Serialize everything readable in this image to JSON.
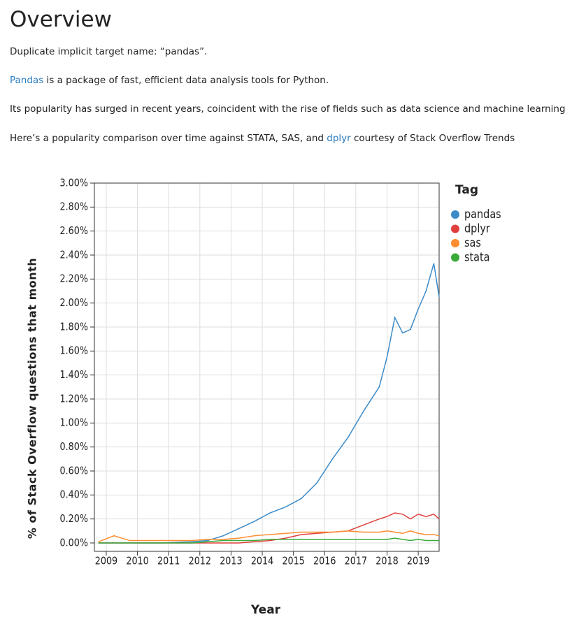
{
  "header": {
    "title": "Overview"
  },
  "paragraphs": [
    [
      {
        "text": "Duplicate implicit target name: “pandas”."
      }
    ],
    [
      {
        "text": "Pandas",
        "link": true
      },
      {
        "text": " is a package of fast, efficient data analysis tools for Python."
      }
    ],
    [
      {
        "text": "Its popularity has surged in recent years, coincident with the rise of fields such as data science and machine learning."
      }
    ],
    [
      {
        "text": "Here’s a popularity comparison over time against STATA, SAS, and "
      },
      {
        "text": "dplyr",
        "link": true
      },
      {
        "text": " courtesy of Stack Overflow Trends"
      }
    ]
  ],
  "chart_data": {
    "type": "line",
    "x_label": "Year",
    "y_label": "% of Stack Overflow questions that month",
    "legend_title": "Tag",
    "legend": "right",
    "grid": true,
    "x": [
      2008.75,
      2009.25,
      2009.75,
      2010.25,
      2010.75,
      2011.25,
      2011.75,
      2012.25,
      2012.75,
      2013.25,
      2013.75,
      2014.25,
      2014.75,
      2015.25,
      2015.75,
      2016.25,
      2016.75,
      2017.25,
      2017.75,
      2018.0,
      2018.25,
      2018.5,
      2018.75,
      2019.0,
      2019.25,
      2019.5,
      2019.67
    ],
    "series": [
      {
        "name": "pandas",
        "color": "#3b8bc9",
        "values": [
          0,
          0,
          0,
          0,
          0,
          0.005,
          0.01,
          0.02,
          0.06,
          0.12,
          0.18,
          0.25,
          0.3,
          0.37,
          0.5,
          0.7,
          0.88,
          1.1,
          1.3,
          1.55,
          1.88,
          1.75,
          1.78,
          1.95,
          2.1,
          2.33,
          2.05
        ]
      },
      {
        "name": "dplyr",
        "color": "#e0403c",
        "values": [
          0,
          0,
          0,
          0,
          0,
          0,
          0,
          0,
          0,
          0,
          0.01,
          0.02,
          0.04,
          0.07,
          0.08,
          0.09,
          0.1,
          0.15,
          0.2,
          0.22,
          0.25,
          0.24,
          0.2,
          0.24,
          0.22,
          0.24,
          0.2
        ]
      },
      {
        "name": "sas",
        "color": "#ff8c2e",
        "values": [
          0.01,
          0.06,
          0.02,
          0.02,
          0.02,
          0.02,
          0.02,
          0.03,
          0.03,
          0.04,
          0.06,
          0.07,
          0.08,
          0.09,
          0.09,
          0.09,
          0.1,
          0.09,
          0.09,
          0.1,
          0.09,
          0.08,
          0.1,
          0.08,
          0.07,
          0.07,
          0.06
        ]
      },
      {
        "name": "stata",
        "color": "#3aaa3a",
        "values": [
          0,
          0,
          0,
          0,
          0,
          0,
          0,
          0.01,
          0.02,
          0.02,
          0.02,
          0.03,
          0.03,
          0.03,
          0.03,
          0.03,
          0.03,
          0.03,
          0.03,
          0.03,
          0.04,
          0.03,
          0.02,
          0.03,
          0.02,
          0.02,
          0.02
        ]
      }
    ],
    "xlim": [
      2008.62,
      2019.67
    ],
    "xticks": [
      2009,
      2010,
      2011,
      2012,
      2013,
      2014,
      2015,
      2016,
      2017,
      2018,
      2019
    ],
    "ylim": [
      -0.07,
      3.0
    ],
    "yticks": [
      {
        "value": 0,
        "label": "0.00%"
      },
      {
        "value": 0.2,
        "label": "0.20%"
      },
      {
        "value": 0.4,
        "label": "0.40%"
      },
      {
        "value": 0.6,
        "label": "0.60%"
      },
      {
        "value": 0.8,
        "label": "0.80%"
      },
      {
        "value": 1.0,
        "label": "1.00%"
      },
      {
        "value": 1.2,
        "label": "1.20%"
      },
      {
        "value": 1.4,
        "label": "1.40%"
      },
      {
        "value": 1.6,
        "label": "1.60%"
      },
      {
        "value": 1.8,
        "label": "1.80%"
      },
      {
        "value": 2.0,
        "label": "2.00%"
      },
      {
        "value": 2.2,
        "label": "2.20%"
      },
      {
        "value": 2.4,
        "label": "2.40%"
      },
      {
        "value": 2.6,
        "label": "2.60%"
      },
      {
        "value": 2.8,
        "label": "2.80%"
      },
      {
        "value": 3.0,
        "label": "3.00%"
      }
    ]
  }
}
